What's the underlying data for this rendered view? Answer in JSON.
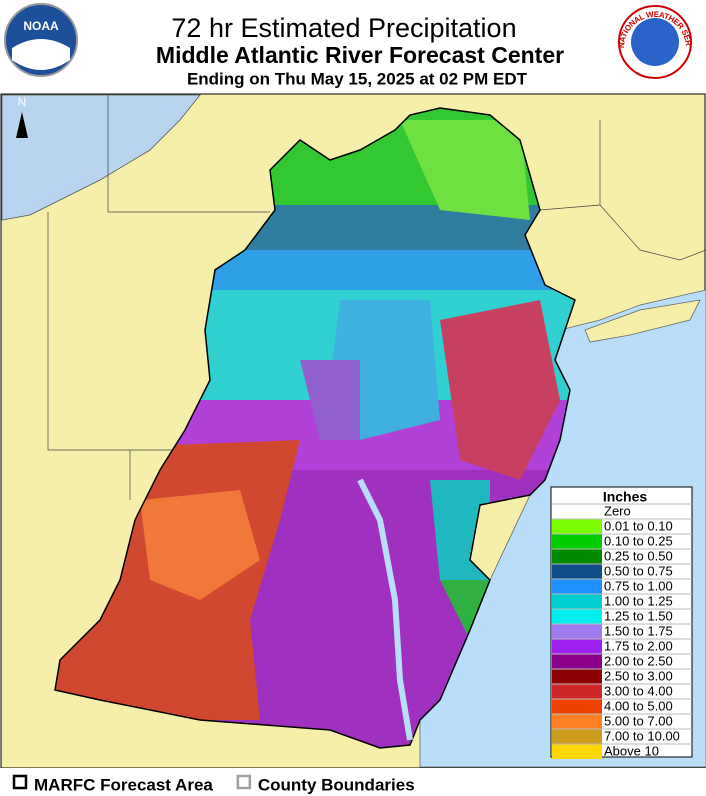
{
  "header": {
    "title": "72 hr Estimated Precipitation",
    "subtitle": "Middle Atlantic River Forecast Center",
    "period": "Ending on Thu May 15, 2025 at 02 PM EDT"
  },
  "logos": {
    "noaa": "NOAA",
    "nws": "NATIONAL WEATHER SERVICE"
  },
  "map": {
    "north": "N"
  },
  "legend": {
    "title": "Inches",
    "items": [
      {
        "label": "Zero",
        "color": "#ffffff"
      },
      {
        "label": "0.01 to 0.10",
        "color": "#7cfc00"
      },
      {
        "label": "0.10 to 0.25",
        "color": "#00cd00"
      },
      {
        "label": "0.25 to 0.50",
        "color": "#008b00"
      },
      {
        "label": "0.50 to 0.75",
        "color": "#104e8b"
      },
      {
        "label": "0.75 to 1.00",
        "color": "#1e90ff"
      },
      {
        "label": "1.00 to 1.25",
        "color": "#00cdcd"
      },
      {
        "label": "1.25 to 1.50",
        "color": "#00eeee"
      },
      {
        "label": "1.50 to 1.75",
        "color": "#9f79ee"
      },
      {
        "label": "1.75 to 2.00",
        "color": "#a020f0"
      },
      {
        "label": "2.00 to 2.50",
        "color": "#8b008b"
      },
      {
        "label": "2.50 to 3.00",
        "color": "#8b0000"
      },
      {
        "label": "3.00 to 4.00",
        "color": "#cd2626"
      },
      {
        "label": "4.00 to 5.00",
        "color": "#ee4000"
      },
      {
        "label": "5.00 to 7.00",
        "color": "#ff7f24"
      },
      {
        "label": "7.00 to 10.00",
        "color": "#cd9b1d"
      },
      {
        "label": "Above 10",
        "color": "#ffd700"
      }
    ]
  },
  "footer": {
    "items": [
      {
        "label": "MARFC Forecast Area",
        "color": "#000000"
      },
      {
        "label": "County Boundaries",
        "color": "#a0a0a0"
      }
    ]
  }
}
